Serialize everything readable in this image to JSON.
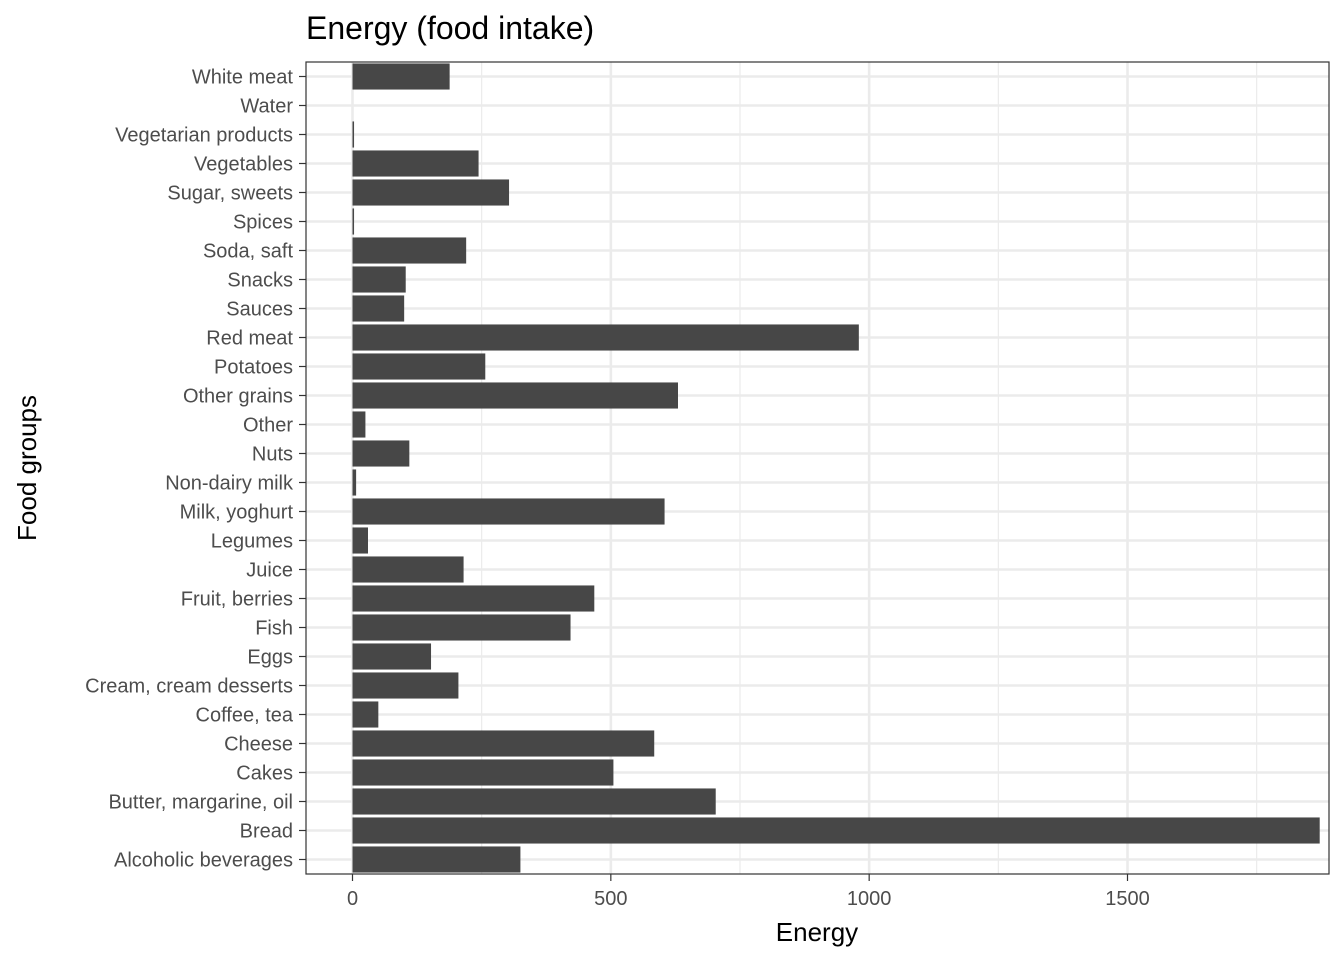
{
  "chart_data": {
    "type": "bar",
    "orientation": "horizontal",
    "title": "Energy (food intake)",
    "xlabel": "Energy",
    "ylabel": "Food groups",
    "xlim": [
      -90,
      1890
    ],
    "x_ticks": [
      0,
      500,
      1000,
      1500
    ],
    "x_tick_labels": [
      "0",
      "500",
      "1000",
      "1500"
    ],
    "grid": true,
    "bar_color": "#474747",
    "categories": [
      "Alcoholic beverages",
      "Bread",
      "Butter, margarine, oil",
      "Cakes",
      "Cheese",
      "Coffee, tea",
      "Cream, cream desserts",
      "Eggs",
      "Fish",
      "Fruit, berries",
      "Juice",
      "Legumes",
      "Milk, yoghurt",
      "Non-dairy milk",
      "Nuts",
      "Other",
      "Other grains",
      "Potatoes",
      "Red meat",
      "Sauces",
      "Snacks",
      "Soda, saft",
      "Spices",
      "Sugar, sweets",
      "Vegetables",
      "Vegetarian products",
      "Water",
      "White meat"
    ],
    "values": [
      325,
      1872,
      703,
      505,
      584,
      50,
      205,
      152,
      422,
      468,
      215,
      30,
      604,
      7,
      110,
      25,
      630,
      257,
      980,
      100,
      103,
      220,
      3,
      303,
      244,
      3,
      0,
      188
    ]
  }
}
